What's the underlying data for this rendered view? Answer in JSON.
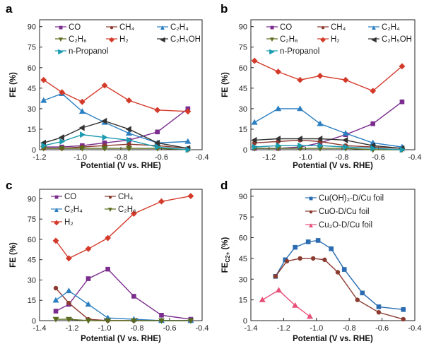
{
  "chart_data": [
    {
      "panel_label": "a",
      "type": "line",
      "xlabel": "Potential (V vs. RHE)",
      "ylabel": "FE (%)",
      "xlim": [
        -1.2,
        -0.4
      ],
      "ylim": [
        0,
        95
      ],
      "xticks": [
        "-1.2",
        "-1.0",
        "-0.8",
        "-0.6",
        "-0.4"
      ],
      "xtick_values": [
        -1.2,
        -1.0,
        -0.8,
        -0.6,
        -0.4
      ],
      "yticks": [
        "0",
        "15",
        "30",
        "45",
        "60",
        "75",
        "90"
      ],
      "ytick_values": [
        0,
        15,
        30,
        45,
        60,
        75,
        90
      ],
      "x": [
        -1.18,
        -1.09,
        -0.99,
        -0.88,
        -0.76,
        -0.62,
        -0.47
      ],
      "series": [
        {
          "name": "CO",
          "color": "#7b2d8e",
          "marker": "square",
          "values": [
            2,
            2,
            3,
            5,
            7,
            13,
            30
          ]
        },
        {
          "name": "CH4",
          "color": "#8b3a2f",
          "marker": "circle",
          "values": [
            1,
            1,
            2,
            3,
            4,
            3,
            1
          ]
        },
        {
          "name": "C2H4",
          "color": "#2b7fc1",
          "marker": "triangle-up",
          "values": [
            36,
            41,
            28,
            20,
            12,
            5,
            6
          ]
        },
        {
          "name": "C2H6",
          "color": "#5a6b1e",
          "marker": "triangle-down",
          "values": [
            1,
            1,
            1,
            1,
            1,
            1,
            0
          ]
        },
        {
          "name": "H2",
          "color": "#d43a2a",
          "marker": "diamond",
          "values": [
            51,
            42,
            35,
            47,
            36,
            29,
            28
          ]
        },
        {
          "name": "C2H5OH",
          "color": "#333333",
          "marker": "triangle-left",
          "values": [
            5,
            9,
            16,
            21,
            15,
            5,
            1
          ]
        },
        {
          "name": "n-Propanol",
          "color": "#1b9bb0",
          "marker": "triangle-right",
          "values": [
            3,
            6,
            11,
            9,
            7,
            2,
            0
          ]
        }
      ],
      "legend_rows": [
        [
          {
            "symbol": "■",
            "text": "CO",
            "color": "#7b2d8e"
          },
          {
            "symbol": "●",
            "text": "CH₄",
            "color": "#8b3a2f"
          },
          {
            "symbol": "▲",
            "text": "C₂H₄",
            "color": "#2b7fc1"
          }
        ],
        [
          {
            "symbol": "▼",
            "text": "C₂H₆",
            "color": "#5a6b1e"
          },
          {
            "symbol": "◆",
            "text": "H₂",
            "color": "#d43a2a"
          },
          {
            "symbol": "◀",
            "text": "C₂H₅OH",
            "color": "#333333"
          }
        ],
        [
          {
            "symbol": "▶",
            "text": "n-Propanol",
            "color": "#1b9bb0"
          }
        ]
      ]
    },
    {
      "panel_label": "b",
      "type": "line",
      "xlabel": "Potential (V vs. RHE)",
      "ylabel": "FE (%)",
      "xlim": [
        -1.3,
        -0.4
      ],
      "ylim": [
        0,
        95
      ],
      "xticks": [
        "-1.2",
        "-1.0",
        "-0.8",
        "-0.6",
        "-0.4"
      ],
      "xtick_values": [
        -1.2,
        -1.0,
        -0.8,
        -0.6,
        -0.4
      ],
      "yticks": [
        "0",
        "15",
        "30",
        "45",
        "60",
        "75",
        "90"
      ],
      "ytick_values": [
        0,
        15,
        30,
        45,
        60,
        75,
        90
      ],
      "x": [
        -1.28,
        -1.15,
        -1.03,
        -0.92,
        -0.78,
        -0.63,
        -0.47
      ],
      "series": [
        {
          "name": "CO",
          "color": "#7b2d8e",
          "marker": "square",
          "values": [
            1,
            1,
            2,
            5,
            11,
            19,
            35
          ]
        },
        {
          "name": "CH4",
          "color": "#8b3a2f",
          "marker": "circle",
          "values": [
            5,
            6,
            7,
            6,
            3,
            2,
            1
          ]
        },
        {
          "name": "C2H4",
          "color": "#2b7fc1",
          "marker": "triangle-up",
          "values": [
            20,
            30,
            30,
            19,
            12,
            5,
            2
          ]
        },
        {
          "name": "C2H6",
          "color": "#5a6b1e",
          "marker": "triangle-down",
          "values": [
            1,
            1,
            1,
            1,
            1,
            0,
            0
          ]
        },
        {
          "name": "H2",
          "color": "#d43a2a",
          "marker": "diamond",
          "values": [
            65,
            57,
            51,
            54,
            51,
            43,
            61
          ]
        },
        {
          "name": "C2H5OH",
          "color": "#333333",
          "marker": "triangle-left",
          "values": [
            7,
            8,
            8,
            8,
            7,
            3,
            1
          ]
        },
        {
          "name": "n-Propanol",
          "color": "#1b9bb0",
          "marker": "triangle-right",
          "values": [
            2,
            3,
            3,
            3,
            2,
            1,
            0
          ]
        }
      ],
      "legend_rows": [
        [
          {
            "symbol": "■",
            "text": "CO",
            "color": "#7b2d8e"
          },
          {
            "symbol": "●",
            "text": "CH₄",
            "color": "#8b3a2f"
          },
          {
            "symbol": "▲",
            "text": "C₂H₄",
            "color": "#2b7fc1"
          }
        ],
        [
          {
            "symbol": "▼",
            "text": "C₂H₆",
            "color": "#5a6b1e"
          },
          {
            "symbol": "◆",
            "text": "H₂",
            "color": "#d43a2a"
          },
          {
            "symbol": "◀",
            "text": "C₂H₅OH",
            "color": "#333333"
          }
        ],
        [
          {
            "symbol": "▶",
            "text": "n-Propanol",
            "color": "#1b9bb0"
          }
        ]
      ]
    },
    {
      "panel_label": "c",
      "type": "line",
      "xlabel": "Potential (V vs. RHE)",
      "ylabel": "FE (%)",
      "xlim": [
        -1.4,
        -0.4
      ],
      "ylim": [
        0,
        97
      ],
      "xticks": [
        "-1.4",
        "-1.2",
        "-1.0",
        "-0.8",
        "-0.6",
        "-0.4"
      ],
      "xtick_values": [
        -1.4,
        -1.2,
        -1.0,
        -0.8,
        -0.6,
        -0.4
      ],
      "yticks": [
        "0",
        "15",
        "30",
        "45",
        "60",
        "75",
        "90"
      ],
      "ytick_values": [
        0,
        15,
        30,
        45,
        60,
        75,
        90
      ],
      "x": [
        -1.3,
        -1.22,
        -1.1,
        -0.98,
        -0.82,
        -0.65,
        -0.47
      ],
      "series": [
        {
          "name": "CO",
          "color": "#7b2d8e",
          "marker": "square",
          "values": [
            7,
            12,
            31,
            38,
            18,
            4,
            1
          ]
        },
        {
          "name": "CH4",
          "color": "#8b3a2f",
          "marker": "circle",
          "values": [
            24,
            13,
            1,
            0,
            0,
            0,
            0
          ]
        },
        {
          "name": "C2H4",
          "color": "#2b7fc1",
          "marker": "triangle-up",
          "values": [
            15,
            22,
            12,
            2,
            1,
            0,
            0
          ]
        },
        {
          "name": "C2H6",
          "color": "#5a6b1e",
          "marker": "triangle-down",
          "values": [
            1,
            1,
            0,
            0,
            0,
            0,
            0
          ]
        },
        {
          "name": "H2",
          "color": "#d43a2a",
          "marker": "diamond",
          "values": [
            59,
            46,
            53,
            61,
            79,
            88,
            92
          ]
        }
      ],
      "legend_rows": [
        [
          {
            "symbol": "■",
            "text": "CO",
            "color": "#7b2d8e"
          },
          {
            "symbol": "●",
            "text": "CH₄",
            "color": "#8b3a2f"
          }
        ],
        [
          {
            "symbol": "▲",
            "text": "C₂H₄",
            "color": "#2b7fc1"
          },
          {
            "symbol": "▼",
            "text": "C₂H₆",
            "color": "#5a6b1e"
          }
        ],
        [
          {
            "symbol": "◆",
            "text": "H₂",
            "color": "#d43a2a"
          }
        ]
      ]
    },
    {
      "panel_label": "d",
      "type": "line",
      "xlabel": "Potential (V vs. RHE)",
      "ylabel": "FE",
      "ylabel_sub": "C2+",
      "ylabel_suffix": " (%)",
      "xlim": [
        -1.4,
        -0.4
      ],
      "ylim": [
        0,
        95
      ],
      "xticks": [
        "-1.4",
        "-1.2",
        "-1.0",
        "-0.8",
        "-0.6",
        "-0.4"
      ],
      "xtick_values": [
        -1.4,
        -1.2,
        -1.0,
        -0.8,
        -0.6,
        -0.4
      ],
      "yticks": [
        "0",
        "15",
        "30",
        "45",
        "60",
        "75",
        "90"
      ],
      "ytick_values": [
        0,
        15,
        30,
        45,
        60,
        75,
        90
      ],
      "series": [
        {
          "name": "Cu(OH)2-D/Cu foil",
          "color": "#2b6cb0",
          "marker": "square",
          "x": [
            -1.25,
            -1.19,
            -1.13,
            -1.05,
            -0.99,
            -0.91,
            -0.83,
            -0.72,
            -0.62,
            -0.47
          ],
          "values": [
            32,
            44,
            53,
            57,
            58,
            52,
            37,
            20,
            10,
            8
          ]
        },
        {
          "name": "CuO-D/Cu foil",
          "color": "#8b3a2f",
          "marker": "circle",
          "x": [
            -1.25,
            -1.18,
            -1.1,
            -1.02,
            -0.95,
            -0.87,
            -0.75,
            -0.62,
            -0.47
          ],
          "values": [
            32,
            43,
            45,
            45,
            44,
            35,
            15,
            6,
            1
          ]
        },
        {
          "name": "Cu2O-D/Cu foil",
          "color": "#e8507a",
          "marker": "triangle-up",
          "x": [
            -1.33,
            -1.23,
            -1.13,
            -1.04
          ],
          "values": [
            15,
            22,
            11,
            3
          ]
        }
      ],
      "legend_rows": [
        [
          {
            "symbol": "■",
            "text": "Cu(OH)₂-D/Cu foil",
            "color": "#2b6cb0"
          }
        ],
        [
          {
            "symbol": "●",
            "text": "CuO-D/Cu foil",
            "color": "#8b3a2f"
          }
        ],
        [
          {
            "symbol": "▲",
            "text": "Cu₂O-D/Cu foil",
            "color": "#e8507a"
          }
        ]
      ]
    }
  ]
}
